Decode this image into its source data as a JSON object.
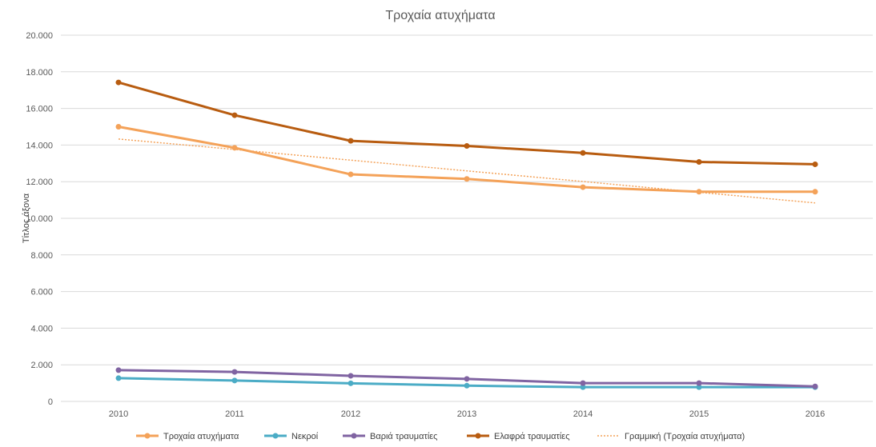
{
  "chart_data": {
    "type": "line",
    "title": "Τροχαία ατυχήματα",
    "xlabel": "",
    "ylabel": "Τίτλος άξονα",
    "ylim": [
      0,
      20000
    ],
    "ytick_labels": [
      "0",
      "2.000",
      "4.000",
      "6.000",
      "8.000",
      "10.000",
      "12.000",
      "14.000",
      "16.000",
      "18.000",
      "20.000"
    ],
    "categories": [
      "2010",
      "2011",
      "2012",
      "2013",
      "2014",
      "2015",
      "2016"
    ],
    "grid": "horizontal",
    "legend_position": "bottom",
    "series": [
      {
        "name": "Τροχαία ατυχήματα",
        "color": "#f4a259",
        "values": [
          15000,
          13850,
          12400,
          12150,
          11700,
          11450,
          11450
        ]
      },
      {
        "name": "Νεκροί",
        "color": "#4bacc6",
        "values": [
          1270,
          1140,
          990,
          860,
          780,
          780,
          780
        ]
      },
      {
        "name": "Βαριά τραυματίες",
        "color": "#8064a2",
        "values": [
          1710,
          1610,
          1400,
          1230,
          1000,
          1000,
          820
        ]
      },
      {
        "name": "Ελαφρά τραυματίες",
        "color": "#b85c10",
        "values": [
          17420,
          15630,
          14230,
          13950,
          13570,
          13080,
          12950
        ]
      }
    ],
    "trendline": {
      "name": "Γραμμική (Τροχαία ατυχήματα)",
      "color": "#f4a259",
      "values": [
        14330,
        13760,
        13175,
        12590,
        12010,
        11420,
        10840
      ]
    }
  }
}
